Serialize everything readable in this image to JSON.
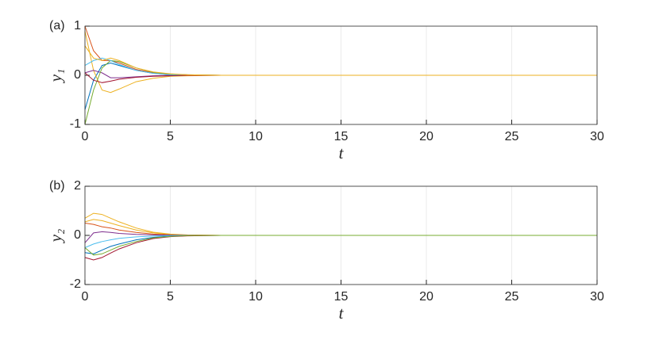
{
  "chart_data": [
    {
      "type": "line",
      "panel_label": "(a)",
      "xlabel": "t",
      "ylabel": "y₁",
      "x": [
        0,
        0.5,
        1,
        1.5,
        2,
        3,
        4,
        5,
        6,
        8,
        10,
        15,
        20,
        30
      ],
      "xlim": [
        0,
        30
      ],
      "xticks": [
        0,
        5,
        10,
        15,
        20,
        25,
        30
      ],
      "ylim": [
        -1,
        1
      ],
      "yticks": [
        -1,
        0,
        1
      ],
      "grid": "x",
      "series": [
        {
          "name": "blue",
          "color": "#0072BD",
          "values": [
            -0.7,
            -0.1,
            0.2,
            0.25,
            0.2,
            0.1,
            0.04,
            0.015,
            0.005,
            0,
            0,
            0,
            0,
            0
          ]
        },
        {
          "name": "orange",
          "color": "#D95319",
          "values": [
            1,
            0.5,
            0.3,
            0.3,
            0.25,
            0.12,
            0.05,
            0.02,
            0.01,
            0,
            0,
            0,
            0,
            0
          ]
        },
        {
          "name": "yellow",
          "color": "#EDB120",
          "values": [
            0.9,
            0.1,
            -0.3,
            -0.35,
            -0.28,
            -0.13,
            -0.06,
            -0.02,
            -0.01,
            0,
            0,
            0,
            0,
            0
          ]
        },
        {
          "name": "purple",
          "color": "#7E2F8E",
          "values": [
            0.05,
            0.1,
            0.05,
            -0.05,
            -0.05,
            -0.03,
            -0.01,
            0,
            0,
            0,
            0,
            0,
            0,
            0
          ]
        },
        {
          "name": "green",
          "color": "#77AC30",
          "values": [
            -1,
            -0.3,
            0.15,
            0.3,
            0.28,
            0.15,
            0.06,
            0.02,
            0.01,
            0,
            0,
            0,
            0,
            0
          ]
        },
        {
          "name": "cyan",
          "color": "#4DBEEE",
          "values": [
            0.2,
            0.3,
            0.35,
            0.3,
            0.22,
            0.1,
            0.04,
            0.01,
            0,
            0,
            0,
            0,
            0,
            0
          ]
        },
        {
          "name": "red",
          "color": "#A2142F",
          "values": [
            0.05,
            -0.1,
            -0.15,
            -0.12,
            -0.08,
            -0.04,
            -0.02,
            -0.01,
            0,
            0,
            0,
            0,
            0,
            0
          ]
        },
        {
          "name": "yellow-2",
          "color": "#EDB120",
          "values": [
            0.6,
            0.35,
            0.3,
            0.35,
            0.3,
            0.15,
            0.07,
            0.03,
            0.01,
            0,
            0,
            0,
            0,
            0
          ]
        }
      ]
    },
    {
      "type": "line",
      "panel_label": "(b)",
      "xlabel": "t",
      "ylabel": "y₂",
      "x": [
        0,
        0.5,
        1,
        1.5,
        2,
        3,
        4,
        5,
        6,
        8,
        10,
        15,
        20,
        30
      ],
      "xlim": [
        0,
        30
      ],
      "xticks": [
        0,
        5,
        10,
        15,
        20,
        25,
        30
      ],
      "ylim": [
        -2,
        2
      ],
      "yticks": [
        -2,
        0,
        2
      ],
      "grid": "x",
      "series": [
        {
          "name": "yellow",
          "color": "#EDB120",
          "values": [
            0.7,
            0.9,
            0.85,
            0.7,
            0.55,
            0.3,
            0.13,
            0.05,
            0.02,
            0,
            0,
            0,
            0,
            0
          ]
        },
        {
          "name": "yellow-2",
          "color": "#EDB120",
          "values": [
            0.55,
            0.65,
            0.6,
            0.5,
            0.4,
            0.22,
            0.1,
            0.04,
            0.01,
            0,
            0,
            0,
            0,
            0
          ]
        },
        {
          "name": "orange",
          "color": "#D95319",
          "values": [
            0.5,
            0.45,
            0.35,
            0.3,
            0.22,
            0.12,
            0.05,
            0.02,
            0.01,
            0,
            0,
            0,
            0,
            0
          ]
        },
        {
          "name": "purple",
          "color": "#7E2F8E",
          "values": [
            -0.3,
            0.1,
            0.15,
            0.12,
            0.08,
            0.04,
            0.02,
            0.01,
            0,
            0,
            0,
            0,
            0,
            0
          ]
        },
        {
          "name": "blue",
          "color": "#0072BD",
          "values": [
            -0.7,
            -0.75,
            -0.6,
            -0.45,
            -0.35,
            -0.18,
            -0.08,
            -0.03,
            -0.01,
            0,
            0,
            0,
            0,
            0
          ]
        },
        {
          "name": "cyan",
          "color": "#4DBEEE",
          "values": [
            -0.5,
            -0.35,
            -0.25,
            -0.18,
            -0.12,
            -0.06,
            -0.03,
            -0.01,
            0,
            0,
            0,
            0,
            0,
            0
          ]
        },
        {
          "name": "red",
          "color": "#A2142F",
          "values": [
            -0.9,
            -1,
            -0.9,
            -0.72,
            -0.55,
            -0.3,
            -0.13,
            -0.05,
            -0.02,
            0,
            0,
            0,
            0,
            0
          ]
        },
        {
          "name": "green",
          "color": "#77AC30",
          "values": [
            -0.5,
            -0.8,
            -0.75,
            -0.6,
            -0.45,
            -0.25,
            -0.1,
            -0.04,
            -0.01,
            0,
            0,
            0,
            0,
            0
          ]
        }
      ]
    }
  ]
}
